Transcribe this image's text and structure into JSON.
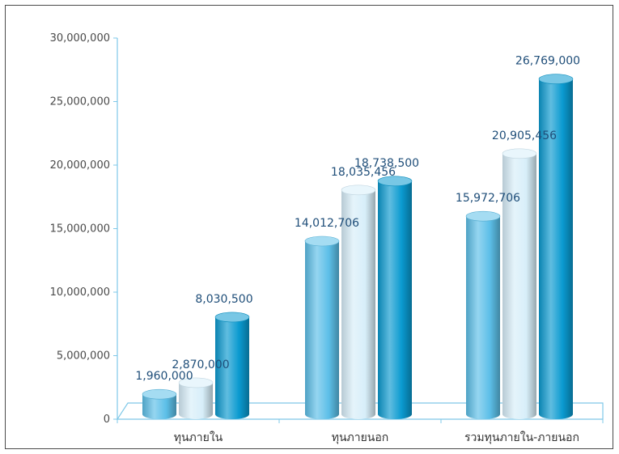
{
  "chart_data": {
    "type": "bar",
    "categories": [
      "ทุนภายใน",
      "ทุนภายนอก",
      "รวมทุนภายใน-ภายนอก"
    ],
    "series": [
      {
        "values": [
          1960000,
          14012706,
          15972706
        ],
        "color": "#5cbfe8"
      },
      {
        "values": [
          2870000,
          18035456,
          20905456
        ],
        "color": "#d7eef9"
      },
      {
        "values": [
          8030500,
          18738500,
          26769000
        ],
        "color": "#0a9ad0"
      }
    ],
    "value_labels": [
      [
        "1,960,000",
        "14,012,706",
        "15,972,706"
      ],
      [
        "2,870,000",
        "18,035,456",
        "20,905,456"
      ],
      [
        "8,030,500",
        "18,738,500",
        "26,769,000"
      ]
    ],
    "ylim": [
      0,
      30000000
    ],
    "yticks": [
      0,
      5000000,
      10000000,
      15000000,
      20000000,
      25000000,
      30000000
    ],
    "ytick_labels": [
      "0",
      "5,000,000",
      "10,000,000",
      "15,000,000",
      "20,000,000",
      "25,000,000",
      "30,000,000"
    ],
    "title": "",
    "xlabel": "",
    "ylabel": "",
    "grid": false,
    "legend": "none",
    "style": "3d-cylinder"
  }
}
